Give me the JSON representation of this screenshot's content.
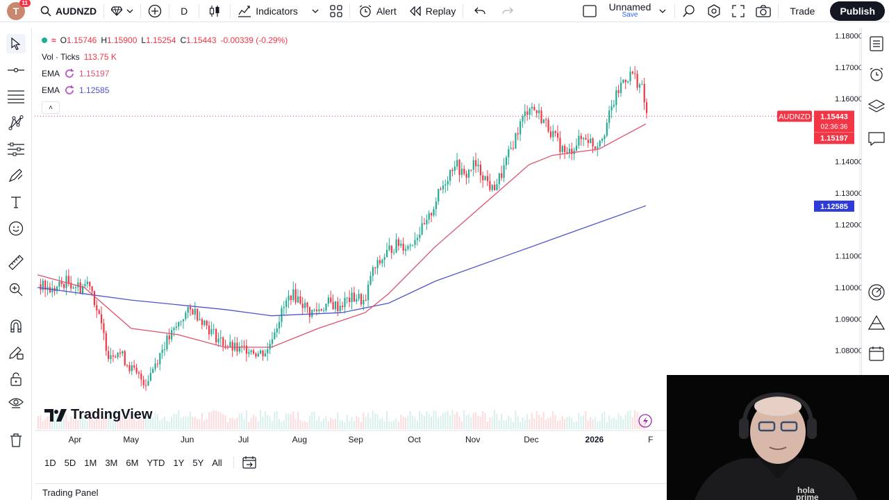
{
  "topbar": {
    "avatar_letter": "T",
    "avatar_badge": "11",
    "symbol": "AUDNZD",
    "interval": "D",
    "indicators_label": "Indicators",
    "alert_label": "Alert",
    "replay_label": "Replay",
    "layout_name": "Unnamed",
    "layout_sub": "Save",
    "trade_label": "Trade",
    "publish_label": "Publish"
  },
  "legend": {
    "o_label": "O",
    "o": "1.15746",
    "h_label": "H",
    "h": "1.15900",
    "l_label": "L",
    "l": "1.15254",
    "c_label": "C",
    "c": "1.15443",
    "change": "-0.00339 (-0.29%)",
    "vol_label": "Vol · Ticks",
    "vol_value": "113.75 K",
    "ema1_label": "EMA",
    "ema1_value": "1.15197",
    "ema2_label": "EMA",
    "ema2_value": "1.12585",
    "collapse_glyph": "˄"
  },
  "brand": {
    "logo_text": "TradingView"
  },
  "ranges": [
    "1D",
    "5D",
    "1M",
    "3M",
    "6M",
    "YTD",
    "1Y",
    "5Y",
    "All"
  ],
  "trading_panel": "Trading Panel",
  "colors": {
    "up": "#22ab94",
    "down": "#f23645",
    "ema_fast": "#e0506a",
    "ema_slow": "#4c55c9",
    "accent": "#2962ff"
  },
  "chart_data": {
    "type": "candlestick",
    "symbol": "AUDNZD",
    "y_ticks": [
      "1.18000",
      "1.17000",
      "1.16000",
      "1.14000",
      "1.13000",
      "1.12000",
      "1.11000",
      "1.10000",
      "1.09000",
      "1.08000"
    ],
    "x_ticks": [
      "Apr",
      "May",
      "Jun",
      "Jul",
      "Aug",
      "Sep",
      "Oct",
      "Nov",
      "Dec",
      "2026",
      "F"
    ],
    "ylim": [
      1.066,
      1.181
    ],
    "price_labels": {
      "symbol_tag": "AUDNZD",
      "last": "1.15443",
      "countdown": "02:36:36",
      "ema_fast": "1.15197",
      "ema_slow": "1.12585"
    },
    "close_path": [
      [
        0,
        1.101
      ],
      [
        6,
        1.099
      ],
      [
        12,
        1.102
      ],
      [
        18,
        1.1
      ],
      [
        22,
        1.102
      ],
      [
        26,
        1.09
      ],
      [
        30,
        1.079
      ],
      [
        34,
        1.08
      ],
      [
        38,
        1.076
      ],
      [
        42,
        1.072
      ],
      [
        46,
        1.07
      ],
      [
        50,
        1.076
      ],
      [
        54,
        1.082
      ],
      [
        58,
        1.086
      ],
      [
        62,
        1.091
      ],
      [
        66,
        1.093
      ],
      [
        70,
        1.09
      ],
      [
        74,
        1.086
      ],
      [
        78,
        1.083
      ],
      [
        82,
        1.081
      ],
      [
        86,
        1.08
      ],
      [
        90,
        1.081
      ],
      [
        94,
        1.079
      ],
      [
        98,
        1.08
      ],
      [
        100,
        1.085
      ],
      [
        104,
        1.092
      ],
      [
        108,
        1.098
      ],
      [
        112,
        1.096
      ],
      [
        116,
        1.092
      ],
      [
        120,
        1.093
      ],
      [
        124,
        1.095
      ],
      [
        128,
        1.094
      ],
      [
        132,
        1.096
      ],
      [
        136,
        1.097
      ],
      [
        140,
        1.095
      ],
      [
        142,
        1.104
      ],
      [
        146,
        1.108
      ],
      [
        150,
        1.112
      ],
      [
        154,
        1.114
      ],
      [
        158,
        1.113
      ],
      [
        162,
        1.117
      ],
      [
        166,
        1.12
      ],
      [
        170,
        1.128
      ],
      [
        174,
        1.134
      ],
      [
        178,
        1.14
      ],
      [
        182,
        1.135
      ],
      [
        186,
        1.139
      ],
      [
        190,
        1.136
      ],
      [
        194,
        1.131
      ],
      [
        198,
        1.136
      ],
      [
        202,
        1.144
      ],
      [
        206,
        1.152
      ],
      [
        210,
        1.158
      ],
      [
        214,
        1.155
      ],
      [
        218,
        1.151
      ],
      [
        222,
        1.146
      ],
      [
        226,
        1.142
      ],
      [
        230,
        1.146
      ],
      [
        234,
        1.148
      ],
      [
        238,
        1.145
      ],
      [
        242,
        1.15
      ],
      [
        246,
        1.159
      ],
      [
        250,
        1.166
      ],
      [
        254,
        1.168
      ],
      [
        258,
        1.163
      ],
      [
        260,
        1.155
      ]
    ],
    "ema_fast_path": [
      [
        0,
        1.104
      ],
      [
        20,
        1.1
      ],
      [
        40,
        1.087
      ],
      [
        60,
        1.085
      ],
      [
        80,
        1.081
      ],
      [
        100,
        1.081
      ],
      [
        120,
        1.087
      ],
      [
        140,
        1.092
      ],
      [
        150,
        1.098
      ],
      [
        170,
        1.113
      ],
      [
        190,
        1.126
      ],
      [
        210,
        1.139
      ],
      [
        220,
        1.142
      ],
      [
        240,
        1.144
      ],
      [
        260,
        1.152
      ]
    ],
    "ema_slow_path": [
      [
        0,
        1.1
      ],
      [
        40,
        1.096
      ],
      [
        80,
        1.093
      ],
      [
        100,
        1.091
      ],
      [
        130,
        1.092
      ],
      [
        150,
        1.095
      ],
      [
        170,
        1.102
      ],
      [
        200,
        1.11
      ],
      [
        230,
        1.118
      ],
      [
        260,
        1.126
      ]
    ],
    "x_count": 260
  }
}
